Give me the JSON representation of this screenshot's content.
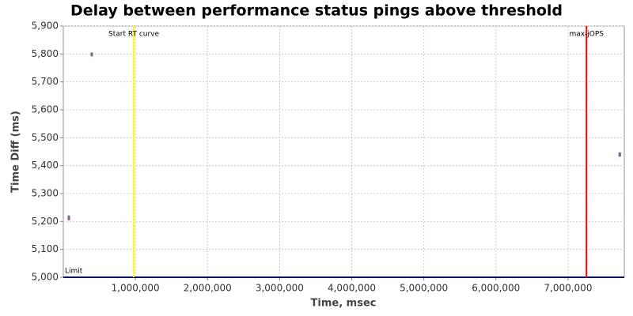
{
  "chart_data": {
    "type": "scatter",
    "title": "Delay between performance status pings above threshold",
    "x_label": "Time, msec",
    "y_label": "Time Diff (ms)",
    "x": [
      77000,
      395000,
      7717000
    ],
    "series": [
      {
        "color": "#e04040",
        "values": [
          5210,
          5797,
          5438
        ]
      },
      {
        "color": "#6070a0",
        "values": [
          5216,
          5800,
          5442
        ]
      }
    ],
    "xlim": [
      0,
      7780000
    ],
    "xticks": [
      {
        "value": 1000000,
        "label": "1,000,000"
      },
      {
        "value": 2000000,
        "label": "2,000,000"
      },
      {
        "value": 3000000,
        "label": "3,000,000"
      },
      {
        "value": 4000000,
        "label": "4,000,000"
      },
      {
        "value": 5000000,
        "label": "5,000,000"
      },
      {
        "value": 6000000,
        "label": "6,000,000"
      },
      {
        "value": 7000000,
        "label": "7,000,000"
      }
    ],
    "ylim": [
      5000,
      5900
    ],
    "yticks": [
      {
        "value": 5000,
        "label": "5,000"
      },
      {
        "value": 5100,
        "label": "5,100"
      },
      {
        "value": 5200,
        "label": "5,200"
      },
      {
        "value": 5300,
        "label": "5,300"
      },
      {
        "value": 5400,
        "label": "5,400"
      },
      {
        "value": 5500,
        "label": "5,500"
      },
      {
        "value": 5600,
        "label": "5,600"
      },
      {
        "value": 5700,
        "label": "5,700"
      },
      {
        "value": 5800,
        "label": "5,800"
      },
      {
        "value": 5900,
        "label": "5,900"
      }
    ],
    "grid": true,
    "markers": [
      {
        "label": "Start RT curve",
        "x": 977000,
        "color": "#ffff00"
      },
      {
        "label": "max-jOPS",
        "x": 7256000,
        "color": "#ff0000"
      }
    ],
    "threshold": {
      "label": "Limit",
      "value": 5000,
      "color": "#000080"
    }
  }
}
